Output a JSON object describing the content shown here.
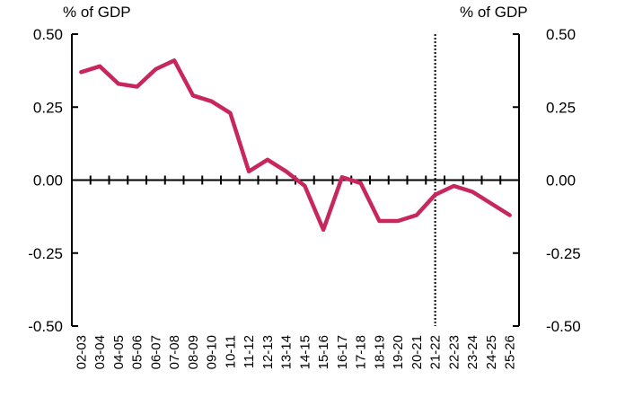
{
  "chart_data": {
    "type": "line",
    "y_unit_left": "% of GDP",
    "y_unit_right": "% of GDP",
    "ylim": [
      -0.5,
      0.5
    ],
    "yticks": [
      0.5,
      0.25,
      0.0,
      -0.25,
      -0.5
    ],
    "ytick_labels": [
      "0.50",
      "0.25",
      "0.00",
      "-0.25",
      "-0.50"
    ],
    "ytick_labels_right": [
      "0.50",
      "0.25",
      "0.00",
      "-0.25",
      "-0.50"
    ],
    "categories": [
      "02-03",
      "03-04",
      "04-05",
      "05-06",
      "06-07",
      "07-08",
      "08-09",
      "09-10",
      "10-11",
      "11-12",
      "12-13",
      "13-14",
      "14-15",
      "15-16",
      "16-17",
      "17-18",
      "18-19",
      "19-20",
      "20-21",
      "21-22",
      "22-23",
      "23-24",
      "24-25",
      "25-26"
    ],
    "series": [
      {
        "values": [
          0.37,
          0.39,
          0.33,
          0.32,
          0.38,
          0.41,
          0.29,
          0.27,
          0.23,
          0.03,
          0.07,
          0.03,
          -0.02,
          -0.17,
          0.01,
          -0.01,
          -0.14,
          -0.14,
          -0.12,
          -0.05,
          -0.02,
          -0.04,
          -0.08,
          -0.12
        ],
        "color": "#C8275E"
      }
    ],
    "forecast_divider_after": "21-22",
    "grid": false,
    "zero_line": true,
    "legend": "none"
  }
}
